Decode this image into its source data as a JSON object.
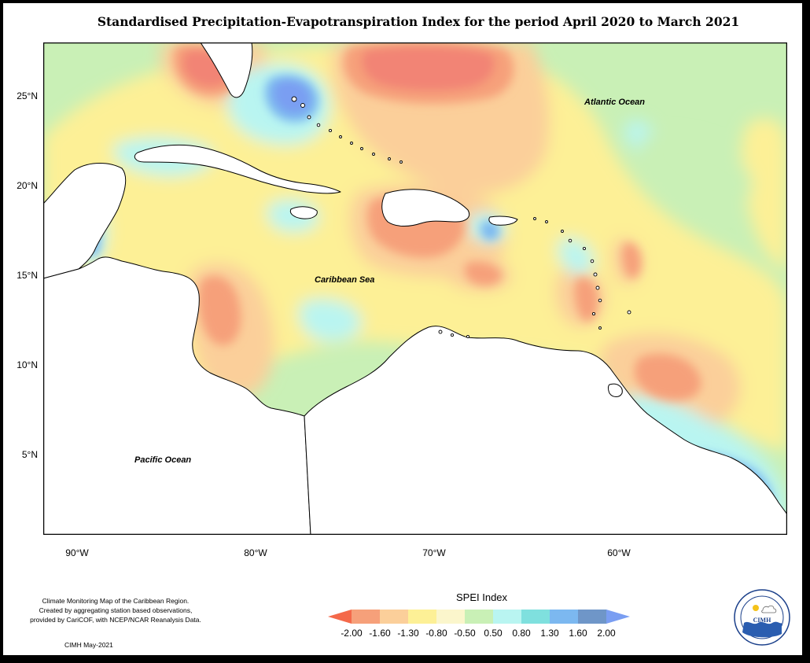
{
  "title": "Standardised Precipitation-Evapotranspiration Index for the period April 2020 to March 2021",
  "map": {
    "labels": {
      "atlantic": "Atlantic Ocean",
      "caribbean": "Caribbean Sea",
      "pacific": "Pacific Ocean"
    },
    "lat_ticks": [
      "25°N",
      "20°N",
      "15°N",
      "10°N",
      "5°N"
    ],
    "lon_ticks": [
      "90°W",
      "80°W",
      "70°W",
      "60°W"
    ],
    "land_color": "#ffffff",
    "coastline_color": "#000000"
  },
  "legend": {
    "title": "SPEI Index",
    "ticks": [
      "-2.00",
      "-1.60",
      "-1.30",
      "-0.80",
      "-0.50",
      "0.50",
      "0.80",
      "1.30",
      "1.60",
      "2.00"
    ],
    "colors": [
      "#f4694a",
      "#f6a07a",
      "#fbcf9a",
      "#fdf096",
      "#fbf6cc",
      "#c9f0b6",
      "#b9f5f1",
      "#7fe0de",
      "#7cb8f0",
      "#6f96c8",
      "#7a9ef2"
    ]
  },
  "credits": {
    "lines": [
      "Climate Monitoring Map of the Caribbean Region.",
      "Created by aggregating station based observations,",
      "provided by CariCOF, with NCEP/NCAR Reanalysis Data."
    ],
    "date": "CIMH May-2021"
  },
  "logo": {
    "name": "CIMH"
  }
}
